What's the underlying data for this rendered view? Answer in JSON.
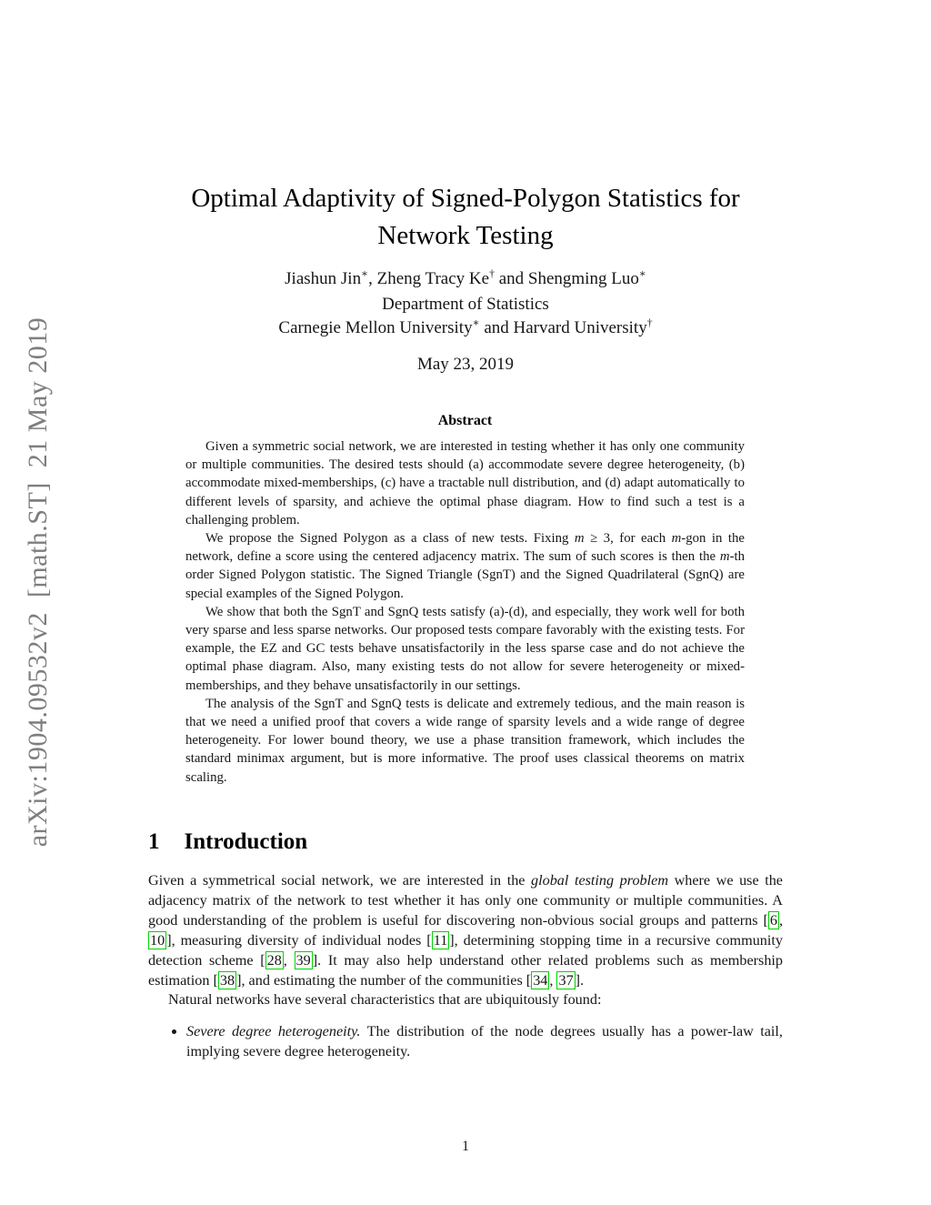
{
  "arxiv_banner": {
    "text": "arXiv:1904.09532v2  [math.ST]  21 May 2019"
  },
  "header": {
    "title_line1": "Optimal Adaptivity of Signed-Polygon Statistics for",
    "title_line2": "Network Testing",
    "authors": {
      "name1": "Jiashun Jin",
      "sup1": "∗",
      "sep1": ", ",
      "name2": "Zheng Tracy Ke",
      "sup2": "†",
      "sep2": " and ",
      "name3": "Shengming Luo",
      "sup3": "∗"
    },
    "department": "Department of Statistics",
    "affiliation": {
      "part1": "Carnegie Mellon University",
      "sup1": "∗",
      "part2": " and Harvard University",
      "sup2": "†"
    },
    "date": "May 23, 2019"
  },
  "abstract": {
    "heading": "Abstract",
    "p1": "Given a symmetric social network, we are interested in testing whether it has only one community or multiple communities. The desired tests should (a) accommodate severe degree heterogeneity, (b) accommodate mixed-memberships, (c) have a tractable null distribution, and (d) adapt automatically to different levels of sparsity, and achieve the optimal phase diagram. How to find such a test is a challenging problem.",
    "p2_parts": [
      {
        "kind": "text",
        "text": "We propose the Signed Polygon as a class of new tests. Fixing "
      },
      {
        "kind": "italic",
        "text": "m"
      },
      {
        "kind": "text",
        "text": " ≥ 3, for each "
      },
      {
        "kind": "italic",
        "text": "m"
      },
      {
        "kind": "text",
        "text": "-gon in the network, define a score using the centered adjacency matrix. The sum of such scores is then the "
      },
      {
        "kind": "italic",
        "text": "m"
      },
      {
        "kind": "text",
        "text": "-th order Signed Polygon statistic. The Signed Triangle (SgnT) and the Signed Quadrilateral (SgnQ) are special examples of the Signed Polygon."
      }
    ],
    "p3": "We show that both the SgnT and SgnQ tests satisfy (a)-(d), and especially, they work well for both very sparse and less sparse networks. Our proposed tests compare favorably with the existing tests. For example, the EZ and GC tests behave unsatisfactorily in the less sparse case and do not achieve the optimal phase diagram. Also, many existing tests do not allow for severe heterogeneity or mixed-memberships, and they behave unsatisfactorily in our settings.",
    "p4": "The analysis of the SgnT and SgnQ tests is delicate and extremely tedious, and the main reason is that we need a unified proof that covers a wide range of sparsity levels and a wide range of degree heterogeneity. For lower bound theory, we use a phase transition framework, which includes the standard minimax argument, but is more informative. The proof uses classical theorems on matrix scaling."
  },
  "introduction": {
    "number": "1",
    "heading": "Introduction",
    "p1_parts": [
      {
        "kind": "text",
        "text": "Given a symmetrical social network, we are interested in the "
      },
      {
        "kind": "italic",
        "text": "global testing problem"
      },
      {
        "kind": "text",
        "text": " where we use the adjacency matrix of the network to test whether it has only one community or multiple communities. A good understanding of the problem is useful for discovering non-obvious social groups and patterns ["
      },
      {
        "kind": "cite",
        "text": "6"
      },
      {
        "kind": "text",
        "text": ", "
      },
      {
        "kind": "cite",
        "text": "10"
      },
      {
        "kind": "text",
        "text": "], measuring diversity of individual nodes ["
      },
      {
        "kind": "cite",
        "text": "11"
      },
      {
        "kind": "text",
        "text": "], determining stopping time in a recursive community detection scheme ["
      },
      {
        "kind": "cite",
        "text": "28"
      },
      {
        "kind": "text",
        "text": ", "
      },
      {
        "kind": "cite",
        "text": "39"
      },
      {
        "kind": "text",
        "text": "]. It may also help understand other related problems such as membership estimation ["
      },
      {
        "kind": "cite",
        "text": "38"
      },
      {
        "kind": "text",
        "text": "], and estimating the number of the communities ["
      },
      {
        "kind": "cite",
        "text": "34"
      },
      {
        "kind": "text",
        "text": ", "
      },
      {
        "kind": "cite",
        "text": "37"
      },
      {
        "kind": "text",
        "text": "]."
      }
    ],
    "p2": "Natural networks have several characteristics that are ubiquitously found:",
    "bullet1": {
      "lead": "Severe degree heterogeneity.",
      "rest": " The distribution of the node degrees usually has a power-law tail, implying severe degree heterogeneity."
    }
  },
  "footer": {
    "page_number": "1"
  }
}
